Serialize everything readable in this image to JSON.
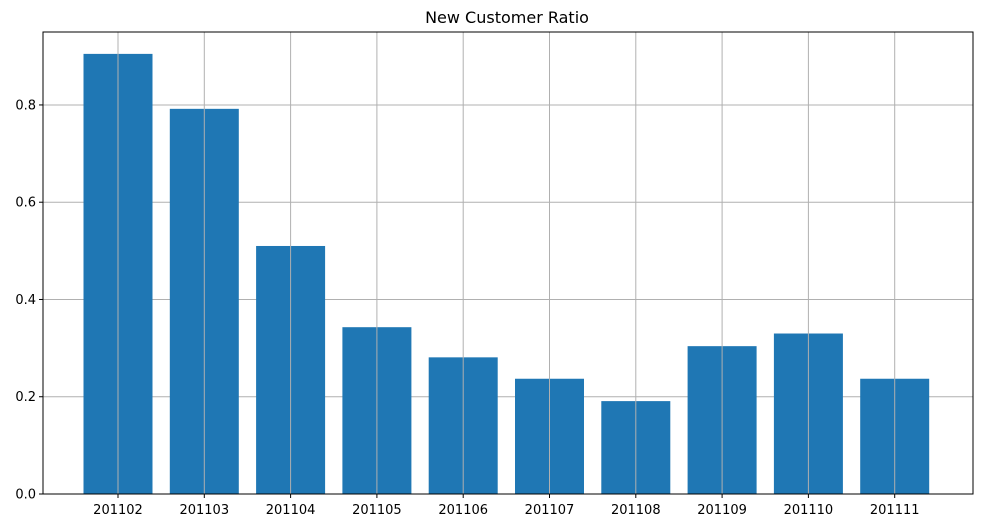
{
  "chart_data": {
    "type": "bar",
    "title": "New Customer Ratio",
    "xlabel": "",
    "ylabel": "",
    "categories": [
      "201102",
      "201103",
      "201104",
      "201105",
      "201106",
      "201107",
      "201108",
      "201109",
      "201110",
      "201111"
    ],
    "values": [
      0.905,
      0.792,
      0.51,
      0.343,
      0.281,
      0.237,
      0.191,
      0.304,
      0.33,
      0.237
    ],
    "ylim": [
      0,
      0.95
    ],
    "yticks": [
      0.0,
      0.2,
      0.4,
      0.6,
      0.8
    ],
    "ytick_labels": [
      "0.0",
      "0.2",
      "0.4",
      "0.6",
      "0.8"
    ],
    "grid": true,
    "legend": "none",
    "bar_color": "#1f77b4",
    "grid_color": "#b0b0b0"
  }
}
